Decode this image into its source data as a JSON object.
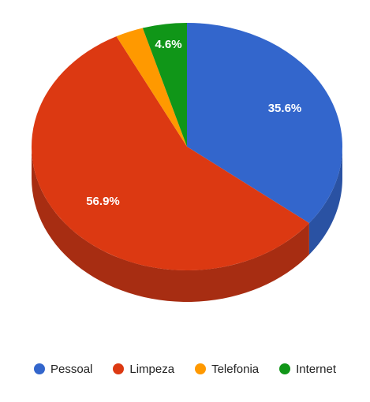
{
  "chart_data": {
    "type": "pie",
    "is_3d": true,
    "legend_position": "bottom",
    "categories": [
      "Pessoal",
      "Limpeza",
      "Telefonia",
      "Internet"
    ],
    "values": [
      35.6,
      56.9,
      2.9,
      4.6
    ],
    "labels": [
      "35.6%",
      "56.9%",
      "",
      "4.6%"
    ],
    "colors": [
      "#3366cc",
      "#dc3912",
      "#ff9900",
      "#109618"
    ],
    "side_colors": [
      "#2a52a3",
      "#a72d12",
      "#c27400",
      "#0c7312"
    ]
  }
}
